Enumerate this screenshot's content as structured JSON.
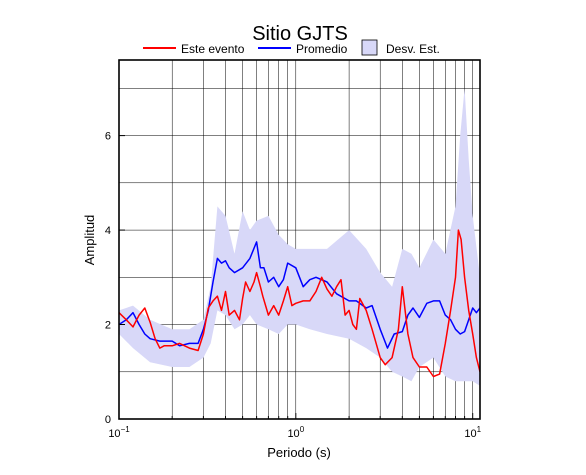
{
  "chart_data": {
    "type": "line",
    "title": "Sitio GJTS",
    "xlabel": "Periodo (s)",
    "ylabel": "Amplitud",
    "xscale": "log",
    "xlim": [
      0.1,
      11
    ],
    "ylim": [
      0,
      7.6
    ],
    "xticks": [
      {
        "value": 0.1,
        "base": "10",
        "exp": "−1"
      },
      {
        "value": 1,
        "base": "10",
        "exp": "0"
      },
      {
        "value": 10,
        "base": "10",
        "exp": "1"
      }
    ],
    "yticks": [
      {
        "value": 0,
        "label": "0"
      },
      {
        "value": 2,
        "label": "2"
      },
      {
        "value": 4,
        "label": "4"
      },
      {
        "value": 6,
        "label": "6"
      }
    ],
    "grid": true,
    "legend_position": "top",
    "legend": [
      {
        "label": "Este evento",
        "kind": "line",
        "color": "#ff0000"
      },
      {
        "label": "Promedio",
        "kind": "line",
        "color": "#0000ff"
      },
      {
        "label": "Desv. Est.",
        "kind": "band",
        "color": "#d8d8f8"
      }
    ],
    "std_band": {
      "name": "Desv. Est.",
      "color": "#d8d8f8",
      "x": [
        0.1,
        0.12,
        0.15,
        0.2,
        0.25,
        0.3,
        0.33,
        0.36,
        0.4,
        0.45,
        0.5,
        0.55,
        0.6,
        0.7,
        0.8,
        0.9,
        1.0,
        1.2,
        1.5,
        2.0,
        2.5,
        3.0,
        3.5,
        4.0,
        4.5,
        5.0,
        6.0,
        7.0,
        8.0,
        8.5,
        9.0,
        9.5,
        10.0,
        11.0
      ],
      "upper": [
        2.3,
        2.4,
        2.1,
        1.9,
        1.9,
        2.1,
        2.8,
        4.5,
        4.3,
        3.5,
        4.4,
        4.0,
        4.2,
        4.3,
        3.9,
        3.7,
        3.6,
        3.6,
        3.6,
        4.0,
        3.6,
        3.1,
        2.8,
        3.6,
        3.5,
        3.2,
        3.8,
        3.5,
        4.5,
        6.0,
        7.0,
        5.5,
        4.3,
        3.0
      ],
      "lower": [
        1.8,
        1.5,
        1.2,
        1.1,
        1.1,
        1.3,
        1.6,
        2.3,
        2.2,
        1.9,
        2.0,
        2.2,
        2.0,
        1.9,
        1.8,
        2.0,
        2.0,
        1.9,
        1.8,
        1.7,
        1.5,
        1.3,
        1.0,
        0.9,
        0.8,
        1.1,
        1.3,
        0.9,
        0.8,
        0.8,
        0.8,
        0.8,
        0.8,
        0.7
      ]
    },
    "series": [
      {
        "name": "Este evento",
        "color": "#ff0000",
        "x": [
          0.1,
          0.11,
          0.12,
          0.13,
          0.14,
          0.15,
          0.16,
          0.17,
          0.18,
          0.2,
          0.22,
          0.25,
          0.28,
          0.3,
          0.32,
          0.34,
          0.36,
          0.38,
          0.4,
          0.42,
          0.45,
          0.48,
          0.5,
          0.52,
          0.55,
          0.58,
          0.6,
          0.63,
          0.65,
          0.7,
          0.75,
          0.8,
          0.85,
          0.9,
          0.95,
          1.0,
          1.1,
          1.2,
          1.3,
          1.4,
          1.5,
          1.6,
          1.7,
          1.8,
          1.9,
          2.0,
          2.1,
          2.2,
          2.3,
          2.5,
          2.7,
          3.0,
          3.2,
          3.5,
          3.8,
          4.0,
          4.3,
          4.6,
          5.0,
          5.5,
          6.0,
          6.5,
          7.0,
          7.5,
          8.0,
          8.3,
          8.6,
          9.0,
          9.5,
          10.0,
          10.5,
          11.0
        ],
        "y": [
          2.25,
          2.1,
          1.95,
          2.2,
          2.35,
          2.05,
          1.7,
          1.5,
          1.55,
          1.55,
          1.6,
          1.5,
          1.45,
          1.8,
          2.35,
          2.5,
          2.6,
          2.3,
          2.7,
          2.2,
          2.3,
          2.1,
          2.55,
          2.9,
          2.7,
          2.9,
          3.1,
          2.8,
          2.6,
          2.2,
          2.4,
          2.2,
          2.5,
          2.8,
          2.4,
          2.45,
          2.5,
          2.5,
          2.7,
          3.0,
          2.75,
          2.6,
          2.8,
          2.95,
          2.2,
          2.3,
          2.0,
          1.9,
          2.55,
          2.3,
          1.9,
          1.3,
          1.15,
          1.3,
          1.9,
          2.8,
          1.8,
          1.3,
          1.1,
          1.1,
          0.9,
          0.95,
          1.6,
          2.3,
          3.0,
          4.0,
          3.8,
          3.0,
          2.3,
          1.8,
          1.3,
          1.0
        ]
      },
      {
        "name": "Promedio",
        "color": "#0000ff",
        "x": [
          0.1,
          0.11,
          0.12,
          0.13,
          0.14,
          0.15,
          0.17,
          0.2,
          0.22,
          0.25,
          0.28,
          0.3,
          0.32,
          0.34,
          0.36,
          0.38,
          0.4,
          0.42,
          0.45,
          0.5,
          0.55,
          0.6,
          0.63,
          0.66,
          0.7,
          0.75,
          0.8,
          0.85,
          0.9,
          1.0,
          1.1,
          1.2,
          1.3,
          1.5,
          1.7,
          2.0,
          2.2,
          2.5,
          2.7,
          3.0,
          3.3,
          3.6,
          4.0,
          4.3,
          4.6,
          5.0,
          5.5,
          6.0,
          6.5,
          7.0,
          7.5,
          8.0,
          8.5,
          9.0,
          9.5,
          10.0,
          10.5,
          11.0
        ],
        "y": [
          2.0,
          2.1,
          2.25,
          2.0,
          1.8,
          1.7,
          1.65,
          1.65,
          1.55,
          1.6,
          1.6,
          1.9,
          2.3,
          2.9,
          3.4,
          3.3,
          3.35,
          3.2,
          3.1,
          3.2,
          3.4,
          3.75,
          3.2,
          3.2,
          2.9,
          3.0,
          2.8,
          2.95,
          3.3,
          3.2,
          2.8,
          2.95,
          3.0,
          2.9,
          2.65,
          2.5,
          2.5,
          2.35,
          2.4,
          1.9,
          1.5,
          1.8,
          1.85,
          2.2,
          2.35,
          2.15,
          2.45,
          2.5,
          2.5,
          2.2,
          2.1,
          1.9,
          1.8,
          1.85,
          2.1,
          2.35,
          2.25,
          2.35
        ]
      }
    ]
  }
}
